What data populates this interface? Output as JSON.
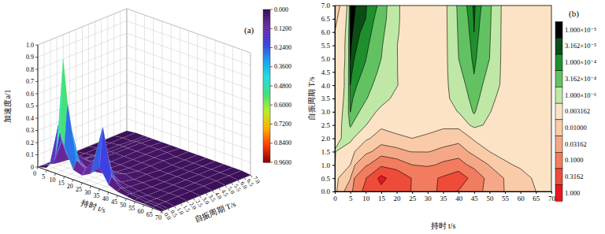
{
  "chart_data": [
    {
      "type": "surface",
      "x_label": "持时 t/s",
      "y_label": "自振周期 T/s",
      "z_label": "加速度a/1",
      "annotations": [
        "(a)"
      ],
      "x": [
        0,
        5,
        10,
        12.5,
        15,
        20,
        25,
        30,
        35,
        40,
        45,
        50,
        55,
        60,
        65,
        70
      ],
      "y": [
        0,
        0.25,
        0.5,
        1,
        2,
        3,
        4,
        5,
        6,
        7
      ],
      "z": [
        [
          0,
          0.02,
          0.15,
          0.35,
          0.25,
          0.08,
          0.06,
          0.1,
          0.18,
          0.06,
          0.03,
          0.02,
          0.01,
          0.01,
          0.005,
          0
        ],
        [
          0,
          0.04,
          0.4,
          0.95,
          0.6,
          0.15,
          0.1,
          0.2,
          0.5,
          0.12,
          0.05,
          0.03,
          0.02,
          0.01,
          0.01,
          0
        ],
        [
          0,
          0.03,
          0.25,
          0.55,
          0.4,
          0.12,
          0.08,
          0.12,
          0.3,
          0.08,
          0.04,
          0.02,
          0.02,
          0.01,
          0.01,
          0
        ],
        [
          0,
          0.02,
          0.08,
          0.15,
          0.12,
          0.06,
          0.05,
          0.06,
          0.08,
          0.04,
          0.03,
          0.02,
          0.01,
          0.01,
          0.01,
          0
        ],
        [
          0,
          0.01,
          0.03,
          0.05,
          0.04,
          0.03,
          0.03,
          0.03,
          0.04,
          0.02,
          0.02,
          0.01,
          0.01,
          0.01,
          0.01,
          0
        ],
        [
          0,
          0.01,
          0.02,
          0.03,
          0.03,
          0.02,
          0.02,
          0.02,
          0.02,
          0.02,
          0.01,
          0.01,
          0.01,
          0.01,
          0.01,
          0
        ],
        [
          0,
          0.01,
          0.02,
          0.02,
          0.02,
          0.02,
          0.02,
          0.02,
          0.02,
          0.01,
          0.01,
          0.01,
          0.01,
          0.01,
          0.01,
          0
        ],
        [
          0,
          0.01,
          0.02,
          0.02,
          0.02,
          0.02,
          0.02,
          0.02,
          0.02,
          0.01,
          0.01,
          0.01,
          0.01,
          0.01,
          0.01,
          0
        ],
        [
          0,
          0.01,
          0.01,
          0.02,
          0.02,
          0.02,
          0.02,
          0.02,
          0.01,
          0.01,
          0.01,
          0.01,
          0.01,
          0.01,
          0.01,
          0
        ],
        [
          0,
          0.01,
          0.01,
          0.01,
          0.01,
          0.01,
          0.01,
          0.01,
          0.01,
          0.01,
          0.01,
          0.01,
          0.01,
          0.01,
          0.01,
          0
        ]
      ],
      "xlim": [
        0,
        70
      ],
      "xticks": [
        0,
        5,
        10,
        15,
        20,
        25,
        30,
        35,
        40,
        45,
        50,
        55,
        60,
        65,
        70
      ],
      "ylim": [
        0,
        7
      ],
      "yticks": [
        {
          "value": 0,
          "label": "0.0"
        },
        {
          "value": 0.5,
          "label": "0.5"
        },
        {
          "value": 1,
          "label": "1.0"
        },
        {
          "value": 1.5,
          "label": "1.5"
        },
        {
          "value": 2,
          "label": "2.0"
        },
        {
          "value": 2.5,
          "label": "2.5"
        },
        {
          "value": 3,
          "label": "3.0"
        },
        {
          "value": 3.5,
          "label": "3.5"
        },
        {
          "value": 4,
          "label": "4.0"
        },
        {
          "value": 4.5,
          "label": "4.5"
        },
        {
          "value": 5,
          "label": "5.0"
        },
        {
          "value": 5.5,
          "label": "5.5"
        },
        {
          "value": 6,
          "label": "6.0"
        },
        {
          "value": 6.5,
          "label": "6.5"
        },
        {
          "value": 7,
          "label": "7.0"
        }
      ],
      "zlim": [
        0,
        1
      ],
      "zticks": [
        0,
        0.1,
        0.2,
        0.3,
        0.4,
        0.5,
        0.6,
        0.7,
        0.8,
        0.9,
        {
          "value": 1,
          "label": "1.0"
        }
      ],
      "colorbar": {
        "range": [
          0,
          0.96
        ],
        "ticks": [
          {
            "value": 0,
            "label": "0.000"
          },
          {
            "value": 0.12,
            "label": "0.1200"
          },
          {
            "value": 0.24,
            "label": "0.2400"
          },
          {
            "value": 0.36,
            "label": "0.3600"
          },
          {
            "value": 0.48,
            "label": "0.4800"
          },
          {
            "value": 0.6,
            "label": "0.6000"
          },
          {
            "value": 0.72,
            "label": "0.7200"
          },
          {
            "value": 0.84,
            "label": "0.8400"
          },
          {
            "value": 0.96,
            "label": "0.9600"
          }
        ]
      },
      "grid": true
    },
    {
      "type": "contour",
      "x_label": "持时 t/s",
      "y_label": "自振周期 T/s",
      "annotations": [
        "(b)"
      ],
      "x": [
        0,
        5,
        10,
        15,
        20,
        25,
        30,
        35,
        40,
        45,
        50,
        55,
        60,
        65,
        70
      ],
      "y": [
        0,
        0.5,
        1,
        1.5,
        2,
        2.5,
        3,
        3.5,
        4,
        4.5,
        5,
        5.5,
        6,
        6.5,
        7
      ],
      "z": [
        [
          0.004,
          0.05,
          0.4,
          0.8,
          0.5,
          0.3,
          0.2,
          0.4,
          0.3,
          0.15,
          0.06,
          0.03,
          0.02,
          0.01,
          0.005
        ],
        [
          0.004,
          0.03,
          0.3,
          1.2,
          0.6,
          0.3,
          0.25,
          0.35,
          0.5,
          0.2,
          0.05,
          0.03,
          0.015,
          0.008,
          0.004
        ],
        [
          0.003,
          0.01,
          0.08,
          0.2,
          0.15,
          0.1,
          0.08,
          0.12,
          0.15,
          0.06,
          0.03,
          0.012,
          0.008,
          0.005,
          0.004
        ],
        [
          0.003,
          0.006,
          0.02,
          0.05,
          0.04,
          0.03,
          0.03,
          0.04,
          0.05,
          0.02,
          0.01,
          0.006,
          0.005,
          0.004,
          0.004
        ],
        [
          0.004,
          0.002,
          0.008,
          0.015,
          0.012,
          0.01,
          0.012,
          0.015,
          0.02,
          0.008,
          0.005,
          0.004,
          0.004,
          0.004,
          0.004
        ],
        [
          0.005,
          0.0008,
          0.003,
          0.008,
          0.006,
          0.005,
          0.006,
          0.008,
          0.006,
          0.002,
          0.004,
          0.005,
          0.005,
          0.005,
          0.005
        ],
        [
          0.006,
          0.0003,
          0.0015,
          0.004,
          0.005,
          0.004,
          0.005,
          0.005,
          0.003,
          0.0008,
          0.003,
          0.005,
          0.005,
          0.005,
          0.005
        ],
        [
          0.007,
          0.0002,
          0.0009,
          0.002,
          0.004,
          0.005,
          0.005,
          0.004,
          0.002,
          0.0005,
          0.002,
          0.005,
          0.005,
          0.006,
          0.006
        ],
        [
          0.008,
          0.0001,
          0.0006,
          0.0015,
          0.003,
          0.005,
          0.005,
          0.004,
          0.0015,
          0.0004,
          0.0015,
          0.004,
          0.006,
          0.006,
          0.006
        ],
        [
          0.008,
          6e-05,
          0.0004,
          0.0012,
          0.003,
          0.006,
          0.006,
          0.004,
          0.0012,
          0.0003,
          0.0012,
          0.004,
          0.006,
          0.007,
          0.007
        ],
        [
          0.009,
          3e-05,
          0.0003,
          0.001,
          0.003,
          0.006,
          0.006,
          0.004,
          0.001,
          0.0002,
          0.001,
          0.004,
          0.007,
          0.007,
          0.007
        ],
        [
          0.009,
          2e-05,
          0.0002,
          0.0008,
          0.003,
          0.007,
          0.006,
          0.004,
          0.0009,
          0.00015,
          0.0009,
          0.004,
          0.007,
          0.008,
          0.008
        ],
        [
          0.01,
          1e-05,
          0.00015,
          0.0006,
          0.0025,
          0.007,
          0.007,
          0.004,
          0.0008,
          0.0001,
          0.0008,
          0.004,
          0.008,
          0.008,
          0.008
        ],
        [
          0.012,
          8e-06,
          0.0001,
          0.0005,
          0.002,
          0.008,
          0.007,
          0.004,
          0.0007,
          8e-05,
          0.0007,
          0.004,
          0.008,
          0.009,
          0.009
        ],
        [
          0.015,
          6e-06,
          8e-05,
          0.0004,
          0.002,
          0.008,
          0.008,
          0.004,
          0.0006,
          6e-05,
          0.0006,
          0.004,
          0.008,
          0.009,
          0.009
        ]
      ],
      "xlim": [
        0,
        70
      ],
      "xticks": [
        0,
        5,
        10,
        15,
        20,
        25,
        30,
        35,
        40,
        45,
        50,
        55,
        60,
        65,
        70
      ],
      "ylim": [
        0,
        7
      ],
      "yticks": [
        {
          "value": 0,
          "label": "0.0"
        },
        {
          "value": 0.5,
          "label": "0.5"
        },
        {
          "value": 1,
          "label": "1.0"
        },
        {
          "value": 1.5,
          "label": "1.5"
        },
        {
          "value": 2,
          "label": "2.0"
        },
        {
          "value": 2.5,
          "label": "2.5"
        },
        {
          "value": 3,
          "label": "3.0"
        },
        {
          "value": 3.5,
          "label": "3.5"
        },
        {
          "value": 4,
          "label": "4.0"
        },
        {
          "value": 4.5,
          "label": "4.5"
        },
        {
          "value": 5,
          "label": "5.0"
        },
        {
          "value": 5.5,
          "label": "5.5"
        },
        {
          "value": 6,
          "label": "6.0"
        },
        {
          "value": 6.5,
          "label": "6.5"
        },
        {
          "value": 7,
          "label": "7.0"
        }
      ],
      "colorbar": {
        "range": [
          1e-05,
          1
        ],
        "ticks": [
          {
            "value": 1e-05,
            "label": "1.000×10⁻⁵"
          },
          {
            "value": 3.162e-05,
            "label": "3.162×10⁻⁵"
          },
          {
            "value": 0.0001,
            "label": "1.000×10⁻⁴"
          },
          {
            "value": 0.0003162,
            "label": "3.162×10⁻⁴"
          },
          {
            "value": 0.001,
            "label": "1.000×10⁻³"
          },
          {
            "value": 0.003162,
            "label": "0.003162"
          },
          {
            "value": 0.01,
            "label": "0.01000"
          },
          {
            "value": 0.03162,
            "label": "0.03162"
          },
          {
            "value": 0.1,
            "label": "0.1000"
          },
          {
            "value": 0.3162,
            "label": "0.3162"
          },
          {
            "value": 1,
            "label": "1.000"
          }
        ]
      }
    }
  ]
}
